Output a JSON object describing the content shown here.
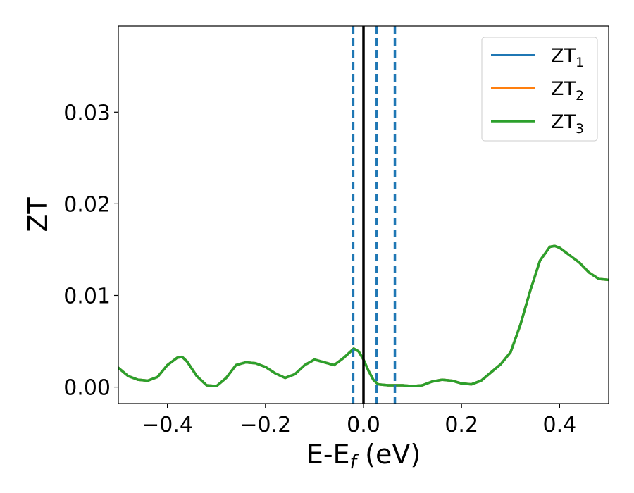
{
  "chart_data": {
    "type": "line",
    "xlabel": {
      "base": "E-E",
      "sub": "f",
      "suffix": " (eV)"
    },
    "ylabel": "ZT",
    "xlim": [
      -0.5,
      0.5
    ],
    "ylim": [
      -0.0018,
      0.0394
    ],
    "xticks": [
      -0.4,
      -0.2,
      0.0,
      0.2,
      0.4
    ],
    "xtick_labels": [
      "−0.4",
      "−0.2",
      "0.0",
      "0.2",
      "0.4"
    ],
    "yticks": [
      0.0,
      0.01,
      0.02,
      0.03
    ],
    "ytick_labels": [
      "0.00",
      "0.01",
      "0.02",
      "0.03"
    ],
    "grid": false,
    "legend_position": "top-right",
    "x": [
      -0.5,
      -0.48,
      -0.46,
      -0.44,
      -0.42,
      -0.4,
      -0.38,
      -0.37,
      -0.36,
      -0.34,
      -0.32,
      -0.3,
      -0.28,
      -0.26,
      -0.24,
      -0.22,
      -0.2,
      -0.18,
      -0.16,
      -0.14,
      -0.12,
      -0.1,
      -0.08,
      -0.06,
      -0.04,
      -0.02,
      -0.01,
      0.0,
      0.01,
      0.02,
      0.03,
      0.05,
      0.08,
      0.1,
      0.12,
      0.14,
      0.16,
      0.18,
      0.2,
      0.22,
      0.24,
      0.26,
      0.28,
      0.3,
      0.32,
      0.34,
      0.36,
      0.38,
      0.39,
      0.4,
      0.42,
      0.44,
      0.46,
      0.48,
      0.5
    ],
    "series": [
      {
        "name": "ZT",
        "sub": "1",
        "color": "#1f77b4",
        "values": [
          0.0021,
          0.0012,
          0.0008,
          0.0007,
          0.0011,
          0.0024,
          0.0032,
          0.0033,
          0.0028,
          0.0012,
          0.0002,
          0.0001,
          0.001,
          0.0024,
          0.0027,
          0.0026,
          0.0022,
          0.0015,
          0.001,
          0.0014,
          0.0024,
          0.003,
          0.0027,
          0.0024,
          0.0032,
          0.0042,
          0.0039,
          0.003,
          0.0018,
          0.0008,
          0.0003,
          0.0002,
          0.0002,
          0.0001,
          0.0002,
          0.0006,
          0.0008,
          0.0007,
          0.0004,
          0.0003,
          0.0007,
          0.0016,
          0.0025,
          0.0038,
          0.0068,
          0.0105,
          0.0138,
          0.0153,
          0.0154,
          0.0152,
          0.0144,
          0.0136,
          0.0125,
          0.0118,
          0.0117
        ]
      },
      {
        "name": "ZT",
        "sub": "2",
        "color": "#ff7f0e",
        "values": [
          0.0021,
          0.0012,
          0.0008,
          0.0007,
          0.0011,
          0.0024,
          0.0032,
          0.0033,
          0.0028,
          0.0012,
          0.0002,
          0.0001,
          0.001,
          0.0024,
          0.0027,
          0.0026,
          0.0022,
          0.0015,
          0.001,
          0.0014,
          0.0024,
          0.003,
          0.0027,
          0.0024,
          0.0032,
          0.0042,
          0.0039,
          0.003,
          0.0018,
          0.0008,
          0.0003,
          0.0002,
          0.0002,
          0.0001,
          0.0002,
          0.0006,
          0.0008,
          0.0007,
          0.0004,
          0.0003,
          0.0007,
          0.0016,
          0.0025,
          0.0038,
          0.0068,
          0.0105,
          0.0138,
          0.0153,
          0.0154,
          0.0152,
          0.0144,
          0.0136,
          0.0125,
          0.0118,
          0.0117
        ]
      },
      {
        "name": "ZT",
        "sub": "3",
        "color": "#2ca02c",
        "values": [
          0.0021,
          0.0012,
          0.0008,
          0.0007,
          0.0011,
          0.0024,
          0.0032,
          0.0033,
          0.0028,
          0.0012,
          0.0002,
          0.0001,
          0.001,
          0.0024,
          0.0027,
          0.0026,
          0.0022,
          0.0015,
          0.001,
          0.0014,
          0.0024,
          0.003,
          0.0027,
          0.0024,
          0.0032,
          0.0042,
          0.0039,
          0.003,
          0.0018,
          0.0008,
          0.0003,
          0.0002,
          0.0002,
          0.0001,
          0.0002,
          0.0006,
          0.0008,
          0.0007,
          0.0004,
          0.0003,
          0.0007,
          0.0016,
          0.0025,
          0.0038,
          0.0068,
          0.0105,
          0.0138,
          0.0153,
          0.0154,
          0.0152,
          0.0144,
          0.0136,
          0.0125,
          0.0118,
          0.0117
        ]
      }
    ],
    "vlines": [
      {
        "x": 0.0,
        "style": "solid",
        "color": "#000000"
      },
      {
        "x": -0.021,
        "style": "dashed",
        "color": "#1f77b4"
      },
      {
        "x": 0.027,
        "style": "dashed",
        "color": "#1f77b4"
      },
      {
        "x": 0.064,
        "style": "dashed",
        "color": "#1f77b4"
      }
    ]
  }
}
